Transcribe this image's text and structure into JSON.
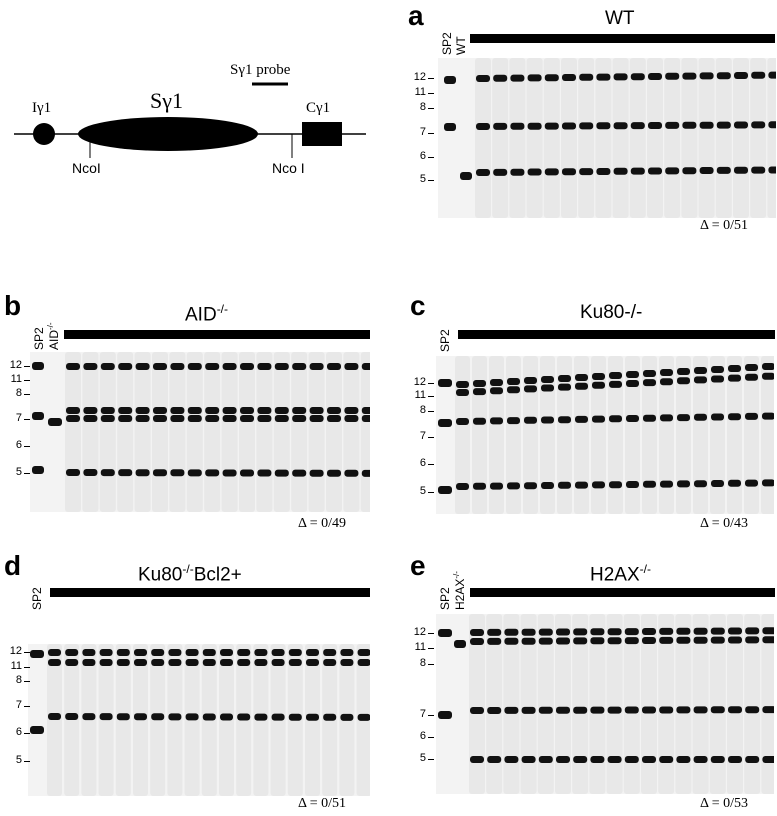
{
  "map": {
    "probe_label": "Sγ1 probe",
    "i_label": "Iγ1",
    "s_label": "Sγ1",
    "c_label": "Cγ1",
    "site_left": "NcoI",
    "site_right": "Nco I"
  },
  "panels": {
    "a": {
      "letter": "a",
      "genotype_main": "WT",
      "genotype_sup": "",
      "genotype_tail": "",
      "lane1": "SP2",
      "lane2": "WT",
      "lane2_sup": "",
      "delta": "Δ = 0/51"
    },
    "b": {
      "letter": "b",
      "genotype_main": "AID",
      "genotype_sup": "-/-",
      "genotype_tail": "",
      "lane1": "SP2",
      "lane2": "AID",
      "lane2_sup": "-/-",
      "delta": "Δ = 0/49"
    },
    "c": {
      "letter": "c",
      "genotype_main": "Ku80-/-",
      "genotype_sup": "",
      "genotype_tail": "",
      "lane1": "SP2",
      "lane2": "",
      "lane2_sup": "",
      "delta": "Δ = 0/43"
    },
    "d": {
      "letter": "d",
      "genotype_main": "Ku80",
      "genotype_sup": "-/-",
      "genotype_tail": "Bcl2+",
      "lane1": "SP2",
      "lane2": "",
      "lane2_sup": "",
      "delta": "Δ = 0/51"
    },
    "e": {
      "letter": "e",
      "genotype_main": "H2AX",
      "genotype_sup": "-/-",
      "genotype_tail": "",
      "lane1": "SP2",
      "lane2": "H2AX",
      "lane2_sup": "-/-",
      "delta": "Δ = 0/53"
    }
  },
  "mw_markers": [
    "12",
    "11",
    "8",
    "7",
    "6",
    "5"
  ]
}
